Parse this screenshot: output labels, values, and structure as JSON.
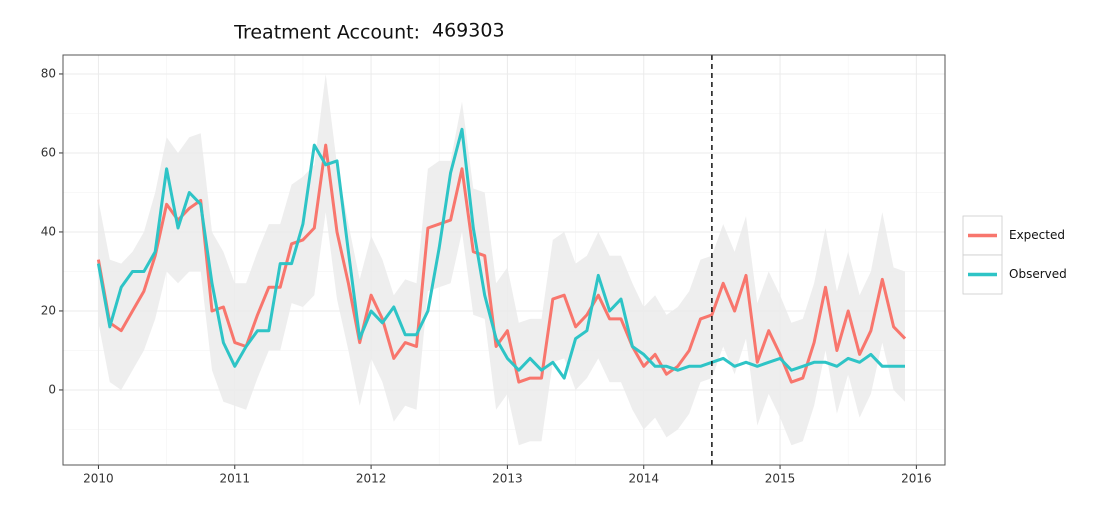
{
  "chart_data": {
    "type": "line",
    "title": "Treatment Account:",
    "account": "469303",
    "x": [
      2010,
      2010.0833,
      2010.1667,
      2010.25,
      2010.3333,
      2010.4167,
      2010.5,
      2010.5833,
      2010.6667,
      2010.75,
      2010.8333,
      2010.9167,
      2011,
      2011.0833,
      2011.1667,
      2011.25,
      2011.3333,
      2011.4167,
      2011.5,
      2011.5833,
      2011.6667,
      2011.75,
      2011.8333,
      2011.9167,
      2012,
      2012.0833,
      2012.1667,
      2012.25,
      2012.3333,
      2012.4167,
      2012.5,
      2012.5833,
      2012.6667,
      2012.75,
      2012.8333,
      2012.9167,
      2013,
      2013.0833,
      2013.1667,
      2013.25,
      2013.3333,
      2013.4167,
      2013.5,
      2013.5833,
      2013.6667,
      2013.75,
      2013.8333,
      2013.9167,
      2014,
      2014.0833,
      2014.1667,
      2014.25,
      2014.3333,
      2014.4167,
      2014.5,
      2014.5833,
      2014.6667,
      2014.75,
      2014.8333,
      2014.9167,
      2015,
      2015.0833,
      2015.1667,
      2015.25,
      2015.3333,
      2015.4167,
      2015.5,
      2015.5833,
      2015.6667,
      2015.75,
      2015.8333,
      2015.9167
    ],
    "band": {
      "color": "#ebebeb",
      "lower": [
        17,
        2,
        0,
        5,
        10,
        18,
        30,
        27,
        30,
        30,
        5,
        -3,
        -4,
        -5,
        3,
        10,
        10,
        22,
        21,
        24,
        45,
        23,
        10,
        -4,
        8,
        2,
        -8,
        -4,
        -5,
        25,
        26,
        27,
        40,
        19,
        18,
        -5,
        -1,
        -14,
        -13,
        -13,
        7,
        8,
        0,
        3,
        8,
        2,
        2,
        -5,
        -10,
        -7,
        -12,
        -10,
        -6,
        2,
        3,
        11,
        4,
        13,
        -9,
        -1,
        -7,
        -14,
        -13,
        -4,
        10,
        -6,
        4,
        -7,
        -1,
        12,
        0,
        -3
      ],
      "upper": [
        48,
        33,
        32,
        35,
        40,
        50,
        64,
        60,
        64,
        65,
        40,
        35,
        27,
        27,
        35,
        42,
        42,
        52,
        54,
        57,
        80,
        57,
        42,
        28,
        39,
        33,
        24,
        28,
        27,
        56,
        58,
        58,
        73,
        51,
        50,
        27,
        31,
        17,
        18,
        18,
        38,
        40,
        32,
        34,
        40,
        34,
        34,
        27,
        21,
        24,
        19,
        21,
        25,
        33,
        34,
        42,
        35,
        44,
        22,
        30,
        24,
        17,
        18,
        27,
        41,
        25,
        35,
        24,
        30,
        45,
        31,
        30
      ]
    },
    "series": [
      {
        "name": "Expected",
        "color": "#f8766d",
        "values": [
          33,
          17,
          15,
          20,
          25,
          34,
          47,
          43,
          46,
          48,
          20,
          21,
          12,
          11,
          19,
          26,
          26,
          37,
          38,
          41,
          62,
          40,
          27,
          12,
          24,
          18,
          8,
          12,
          11,
          41,
          42,
          43,
          56,
          35,
          34,
          11,
          15,
          2,
          3,
          3,
          23,
          24,
          16,
          19,
          24,
          18,
          18,
          11,
          6,
          9,
          4,
          6,
          10,
          18,
          19,
          27,
          20,
          29,
          7,
          15,
          9,
          2,
          3,
          12,
          26,
          10,
          20,
          9,
          15,
          28,
          16,
          13
        ]
      },
      {
        "name": "Observed",
        "color": "#2ec4c6",
        "values": [
          32,
          16,
          26,
          30,
          30,
          35,
          56,
          41,
          50,
          47,
          27,
          12,
          6,
          11,
          15,
          15,
          32,
          32,
          42,
          62,
          57,
          58,
          35,
          13,
          20,
          17,
          21,
          14,
          14,
          20,
          36,
          55,
          66,
          41,
          24,
          13,
          8,
          5,
          8,
          5,
          7,
          3,
          13,
          15,
          29,
          20,
          23,
          11,
          9,
          6,
          6,
          5,
          6,
          6,
          7,
          8,
          6,
          7,
          6,
          7,
          8,
          5,
          6,
          7,
          7,
          6,
          8,
          7,
          9,
          6,
          6,
          6
        ]
      }
    ],
    "vline": 2014.5,
    "xlim": [
      2009.74,
      2016.21
    ],
    "ylim": [
      -19,
      84.8
    ],
    "xticks": [
      2010,
      2011,
      2012,
      2013,
      2014,
      2015,
      2016
    ],
    "yticks": [
      0,
      20,
      40,
      60,
      80
    ],
    "grid": true,
    "legend": "right"
  }
}
